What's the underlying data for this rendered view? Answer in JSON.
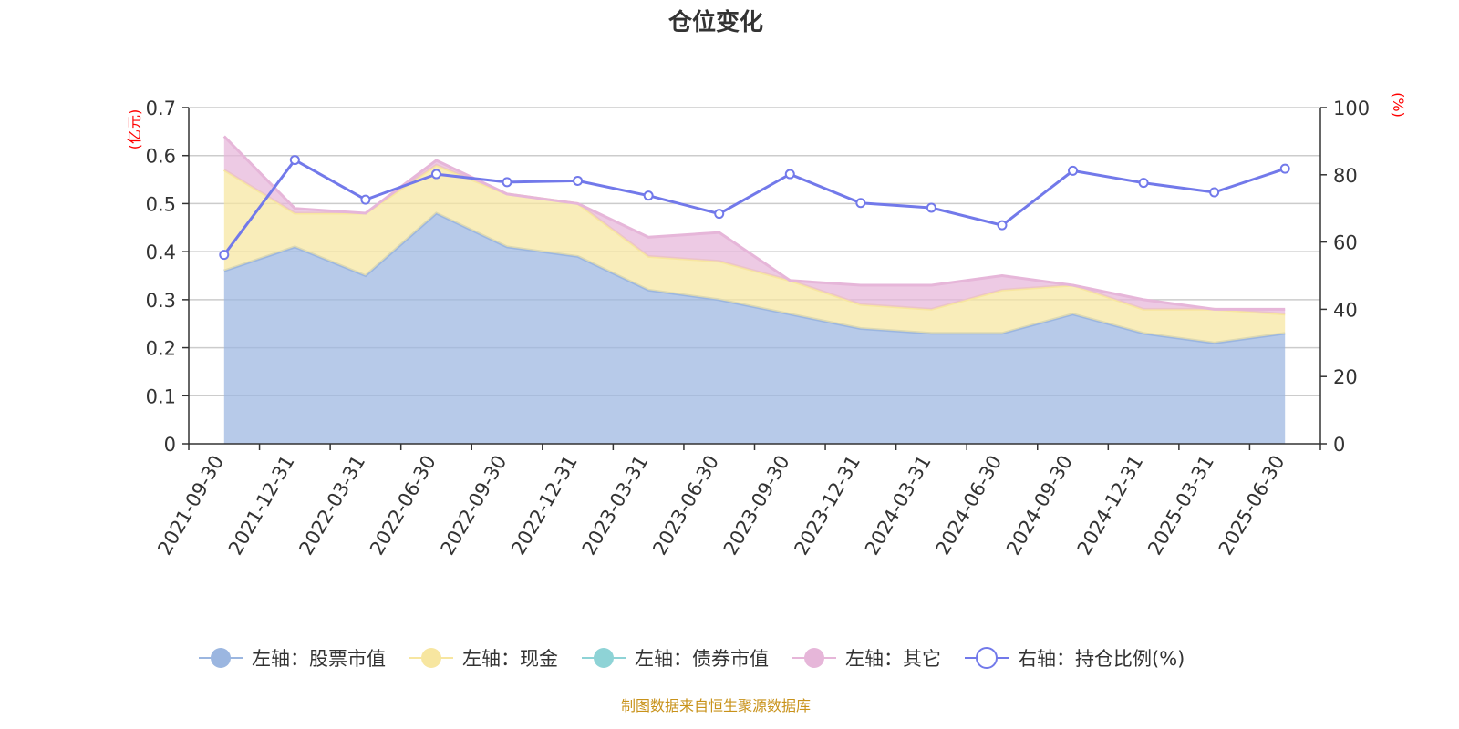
{
  "chart_data": {
    "type": "area",
    "title": "仓位变化",
    "left_unit": "(亿元)",
    "right_unit": "(%)",
    "categories": [
      "2021-09-30",
      "2021-12-31",
      "2022-03-31",
      "2022-06-30",
      "2022-09-30",
      "2022-12-31",
      "2023-03-31",
      "2023-06-30",
      "2023-09-30",
      "2023-12-31",
      "2024-03-31",
      "2024-06-30",
      "2024-09-30",
      "2024-12-31",
      "2025-03-31",
      "2025-06-30"
    ],
    "left_axis": {
      "ylim": [
        0,
        0.7
      ],
      "ticks": [
        "0",
        "0.1",
        "0.2",
        "0.3",
        "0.4",
        "0.5",
        "0.6",
        "0.7"
      ]
    },
    "right_axis": {
      "ylim": [
        0,
        100
      ],
      "ticks": [
        "0",
        "20",
        "40",
        "60",
        "80",
        "100"
      ]
    },
    "grid": true,
    "legend_position": "bottom",
    "series": [
      {
        "name": "左轴：股票市值",
        "axis": "left",
        "stacked": true,
        "color": "#9bb6e0",
        "values": [
          0.36,
          0.41,
          0.35,
          0.48,
          0.41,
          0.39,
          0.32,
          0.3,
          0.27,
          0.24,
          0.23,
          0.23,
          0.27,
          0.23,
          0.21,
          0.23
        ]
      },
      {
        "name": "左轴：现金",
        "axis": "left",
        "stacked": true,
        "color": "#f7e6a0",
        "values": [
          0.21,
          0.07,
          0.13,
          0.1,
          0.11,
          0.11,
          0.07,
          0.08,
          0.07,
          0.05,
          0.05,
          0.09,
          0.06,
          0.05,
          0.07,
          0.04
        ]
      },
      {
        "name": "左轴：债券市值",
        "axis": "left",
        "stacked": true,
        "color": "#8ed3d6",
        "values": [
          0,
          0,
          0,
          0,
          0,
          0,
          0,
          0,
          0,
          0,
          0,
          0,
          0,
          0,
          0,
          0
        ]
      },
      {
        "name": "左轴：其它",
        "axis": "left",
        "stacked": true,
        "color": "#e6b6d9",
        "values": [
          0.07,
          0.01,
          0.0,
          0.01,
          0.0,
          0.0,
          0.04,
          0.06,
          0.0,
          0.04,
          0.05,
          0.03,
          0.0,
          0.02,
          0.0,
          0.01
        ]
      },
      {
        "name": "右轴：持仓比例(%)",
        "axis": "right",
        "type": "line",
        "color": "#7279ea",
        "values": [
          56.2,
          84.4,
          72.6,
          80.2,
          77.8,
          78.2,
          73.8,
          68.4,
          80.2,
          71.6,
          70.2,
          65.0,
          81.2,
          77.6,
          74.8,
          81.8
        ]
      }
    ],
    "source_note": "制图数据来自恒生聚源数据库"
  }
}
